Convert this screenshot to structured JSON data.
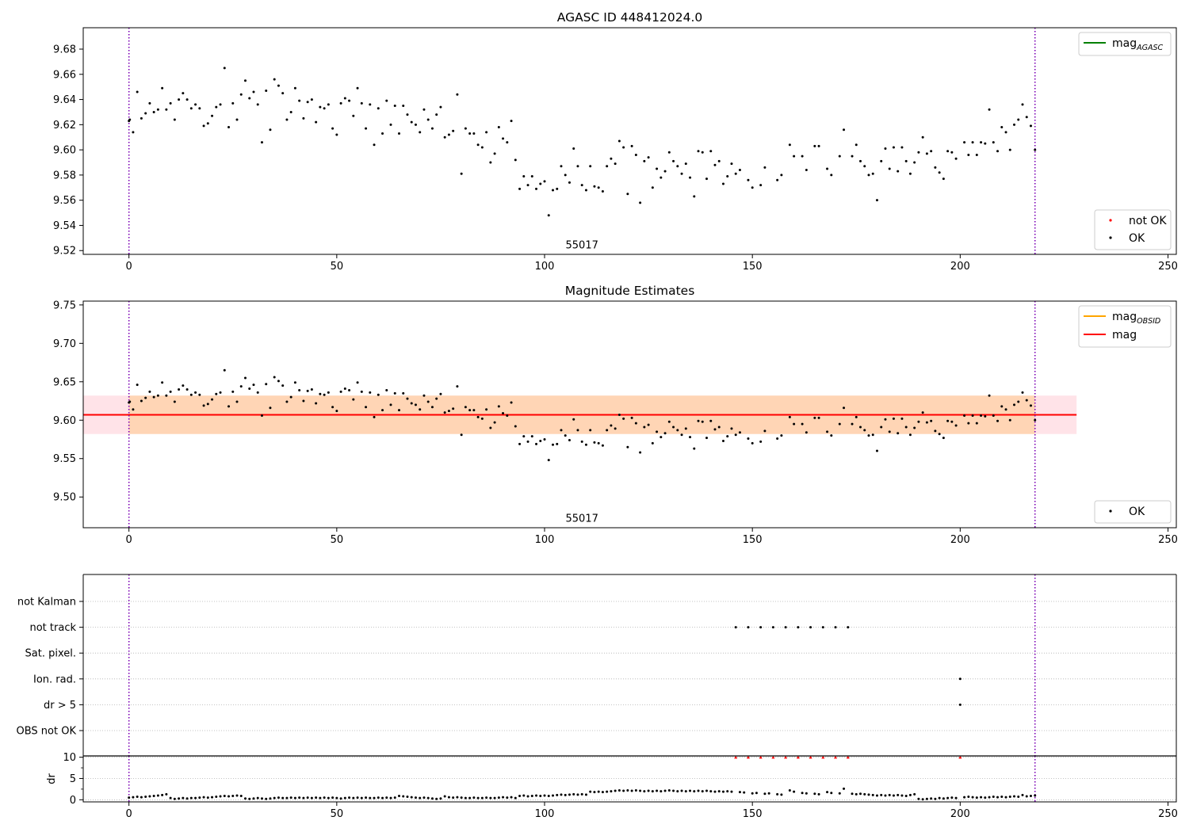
{
  "chart_data": [
    {
      "type": "scatter",
      "title": "AGASC ID 448412024.0",
      "xlim": [
        -11,
        252
      ],
      "ylim": [
        9.517,
        9.697
      ],
      "xticks": [
        0,
        50,
        100,
        150,
        200,
        250
      ],
      "yticks": [
        9.52,
        9.54,
        9.56,
        9.58,
        9.6,
        9.62,
        9.64,
        9.66,
        9.68
      ],
      "ytick_decimals": 2,
      "obsid_bounds": [
        0,
        218
      ],
      "obsid_label": {
        "text": "55017",
        "x": 109,
        "y": 9.525
      },
      "legend_lines": [
        {
          "label": "mag",
          "sub": "AGASC",
          "color": "#008000"
        }
      ],
      "legend_markers": [
        {
          "label": "not OK",
          "color": "#ff0000"
        },
        {
          "label": "OK",
          "color": "#000000"
        }
      ],
      "legend_placement": {
        "lines": "top-right",
        "markers": "bottom-right"
      },
      "series": [
        {
          "name": "OK",
          "color": "#000000",
          "source": "mag_points"
        }
      ]
    },
    {
      "type": "scatter",
      "title": "Magnitude Estimates",
      "xlim": [
        -11,
        252
      ],
      "ylim": [
        9.46,
        9.755
      ],
      "xticks": [
        0,
        50,
        100,
        150,
        200,
        250
      ],
      "yticks": [
        9.5,
        9.55,
        9.6,
        9.65,
        9.7,
        9.75
      ],
      "ytick_decimals": 2,
      "obsid_bounds": [
        0,
        218
      ],
      "obsid_label": {
        "text": "55017",
        "x": 109,
        "y": 9.473
      },
      "mag_line": {
        "value": 9.607,
        "x": [
          -11,
          228
        ],
        "color": "#ff0000"
      },
      "mag_band": {
        "low": 9.582,
        "high": 9.632,
        "x": [
          -11,
          228
        ],
        "color": "#ffc0cb"
      },
      "obsid_line": {
        "value": 9.607,
        "x": [
          0,
          218
        ],
        "color": "#ffa500"
      },
      "obsid_band": {
        "low": 9.582,
        "high": 9.632,
        "x": [
          0,
          218
        ],
        "color": "#ffa500"
      },
      "legend_lines": [
        {
          "label": "mag",
          "sub": "OBSID",
          "color": "#ffa500"
        },
        {
          "label": "mag",
          "sub": "",
          "color": "#ff0000"
        }
      ],
      "legend_markers": [
        {
          "label": "OK",
          "color": "#000000"
        }
      ],
      "legend_placement": {
        "lines": "top-right",
        "markers": "bottom-right"
      },
      "series": [
        {
          "name": "OK",
          "color": "#000000",
          "source": "mag_points"
        }
      ]
    },
    {
      "type": "scatter",
      "title": "",
      "xlim": [
        -11,
        252
      ],
      "categories": [
        "not Kalman",
        "not track",
        "Sat. pixel.",
        "Ion. rad.",
        "dr > 5",
        "OBS not OK"
      ],
      "flags": {
        "not Kalman": [],
        "not track": [
          146,
          149,
          152,
          155,
          158,
          161,
          164,
          167,
          170,
          173
        ],
        "Sat. pixel.": [],
        "Ion. rad.": [
          200
        ],
        "dr > 5": [
          200
        ],
        "OBS not OK": []
      },
      "obsid_bounds": [
        0,
        218
      ],
      "grid": true
    },
    {
      "type": "scatter",
      "title": "",
      "xlabel": "",
      "ylabel": "dr",
      "xlim": [
        -11,
        252
      ],
      "ylim": [
        -0.5,
        10.3
      ],
      "xticks": [
        0,
        50,
        100,
        150,
        200,
        250
      ],
      "yticks": [
        0,
        5,
        10
      ],
      "obsid_bounds": [
        0,
        218
      ],
      "grid": true,
      "clipped_over_10": [
        146,
        149,
        152,
        155,
        158,
        161,
        164,
        167,
        170,
        173,
        200
      ],
      "series": [
        {
          "name": "dr",
          "color": "#000000",
          "source": "dr_points"
        }
      ]
    }
  ],
  "mag_points": [
    [
      0,
      9.623
    ],
    [
      0.2,
      9.624
    ],
    [
      1,
      9.614
    ],
    [
      2,
      9.646
    ],
    [
      3,
      9.625
    ],
    [
      4,
      9.629
    ],
    [
      5,
      9.637
    ],
    [
      6,
      9.63
    ],
    [
      7,
      9.632
    ],
    [
      8,
      9.649
    ],
    [
      9,
      9.632
    ],
    [
      10,
      9.637
    ],
    [
      11,
      9.624
    ],
    [
      12,
      9.64
    ],
    [
      13,
      9.645
    ],
    [
      14,
      9.64
    ],
    [
      15,
      9.633
    ],
    [
      16,
      9.636
    ],
    [
      17,
      9.633
    ],
    [
      18,
      9.619
    ],
    [
      19,
      9.621
    ],
    [
      20,
      9.627
    ],
    [
      21,
      9.634
    ],
    [
      22,
      9.636
    ],
    [
      23,
      9.665
    ],
    [
      24,
      9.618
    ],
    [
      25,
      9.637
    ],
    [
      26,
      9.624
    ],
    [
      27,
      9.644
    ],
    [
      28,
      9.655
    ],
    [
      29,
      9.641
    ],
    [
      30,
      9.646
    ],
    [
      31,
      9.636
    ],
    [
      32,
      9.606
    ],
    [
      33,
      9.647
    ],
    [
      34,
      9.616
    ],
    [
      35,
      9.656
    ],
    [
      36,
      9.651
    ],
    [
      37,
      9.645
    ],
    [
      38,
      9.624
    ],
    [
      39,
      9.63
    ],
    [
      40,
      9.649
    ],
    [
      41,
      9.639
    ],
    [
      42,
      9.625
    ],
    [
      43,
      9.638
    ],
    [
      44,
      9.64
    ],
    [
      45,
      9.622
    ],
    [
      46,
      9.634
    ],
    [
      47,
      9.633
    ],
    [
      48,
      9.636
    ],
    [
      49,
      9.617
    ],
    [
      50,
      9.612
    ],
    [
      51,
      9.637
    ],
    [
      52,
      9.641
    ],
    [
      53,
      9.639
    ],
    [
      54,
      9.627
    ],
    [
      55,
      9.649
    ],
    [
      56,
      9.637
    ],
    [
      57,
      9.617
    ],
    [
      58,
      9.636
    ],
    [
      59,
      9.604
    ],
    [
      60,
      9.633
    ],
    [
      61,
      9.613
    ],
    [
      62,
      9.639
    ],
    [
      63,
      9.62
    ],
    [
      64,
      9.635
    ],
    [
      65,
      9.613
    ],
    [
      66,
      9.635
    ],
    [
      67,
      9.628
    ],
    [
      68,
      9.622
    ],
    [
      69,
      9.62
    ],
    [
      70,
      9.614
    ],
    [
      71,
      9.632
    ],
    [
      72,
      9.624
    ],
    [
      73,
      9.617
    ],
    [
      74,
      9.628
    ],
    [
      75,
      9.634
    ],
    [
      76,
      9.61
    ],
    [
      77,
      9.612
    ],
    [
      78,
      9.615
    ],
    [
      79,
      9.644
    ],
    [
      80,
      9.581
    ],
    [
      81,
      9.617
    ],
    [
      82,
      9.613
    ],
    [
      83,
      9.613
    ],
    [
      84,
      9.604
    ],
    [
      85,
      9.602
    ],
    [
      86,
      9.614
    ],
    [
      87,
      9.59
    ],
    [
      88,
      9.597
    ],
    [
      89,
      9.618
    ],
    [
      90,
      9.609
    ],
    [
      91,
      9.606
    ],
    [
      92,
      9.623
    ],
    [
      93,
      9.592
    ],
    [
      94,
      9.569
    ],
    [
      95,
      9.579
    ],
    [
      96,
      9.572
    ],
    [
      97,
      9.579
    ],
    [
      98,
      9.569
    ],
    [
      99,
      9.573
    ],
    [
      100,
      9.575
    ],
    [
      101,
      9.548
    ],
    [
      102,
      9.568
    ],
    [
      103,
      9.569
    ],
    [
      104,
      9.587
    ],
    [
      105,
      9.58
    ],
    [
      106,
      9.574
    ],
    [
      107,
      9.601
    ],
    [
      108,
      9.587
    ],
    [
      109,
      9.572
    ],
    [
      110,
      9.568
    ],
    [
      111,
      9.587
    ],
    [
      112,
      9.571
    ],
    [
      113,
      9.57
    ],
    [
      114,
      9.567
    ],
    [
      115,
      9.587
    ],
    [
      116,
      9.593
    ],
    [
      117,
      9.589
    ],
    [
      118,
      9.607
    ],
    [
      119,
      9.602
    ],
    [
      120,
      9.565
    ],
    [
      121,
      9.603
    ],
    [
      122,
      9.596
    ],
    [
      123,
      9.558
    ],
    [
      124,
      9.591
    ],
    [
      125,
      9.594
    ],
    [
      126,
      9.57
    ],
    [
      127,
      9.585
    ],
    [
      128,
      9.578
    ],
    [
      129,
      9.583
    ],
    [
      130,
      9.598
    ],
    [
      131,
      9.591
    ],
    [
      132,
      9.587
    ],
    [
      133,
      9.581
    ],
    [
      134,
      9.589
    ],
    [
      135,
      9.578
    ],
    [
      136,
      9.563
    ],
    [
      137,
      9.599
    ],
    [
      138,
      9.598
    ],
    [
      139,
      9.577
    ],
    [
      140,
      9.599
    ],
    [
      141,
      9.588
    ],
    [
      142,
      9.591
    ],
    [
      143,
      9.573
    ],
    [
      144,
      9.579
    ],
    [
      145,
      9.589
    ],
    [
      146,
      9.581
    ],
    [
      147,
      9.584
    ],
    [
      149,
      9.576
    ],
    [
      150,
      9.57
    ],
    [
      152,
      9.572
    ],
    [
      153,
      9.586
    ],
    [
      156,
      9.576
    ],
    [
      157,
      9.58
    ],
    [
      159,
      9.604
    ],
    [
      160,
      9.595
    ],
    [
      162,
      9.595
    ],
    [
      163,
      9.584
    ],
    [
      165,
      9.603
    ],
    [
      166,
      9.603
    ],
    [
      168,
      9.585
    ],
    [
      169,
      9.58
    ],
    [
      171,
      9.595
    ],
    [
      172,
      9.616
    ],
    [
      174,
      9.595
    ],
    [
      175,
      9.604
    ],
    [
      176,
      9.591
    ],
    [
      177,
      9.587
    ],
    [
      178,
      9.58
    ],
    [
      179,
      9.581
    ],
    [
      180,
      9.56
    ],
    [
      181,
      9.591
    ],
    [
      182,
      9.601
    ],
    [
      183,
      9.585
    ],
    [
      184,
      9.602
    ],
    [
      185,
      9.583
    ],
    [
      186,
      9.602
    ],
    [
      187,
      9.591
    ],
    [
      188,
      9.581
    ],
    [
      189,
      9.59
    ],
    [
      190,
      9.598
    ],
    [
      191,
      9.61
    ],
    [
      192,
      9.597
    ],
    [
      193,
      9.599
    ],
    [
      194,
      9.586
    ],
    [
      195,
      9.582
    ],
    [
      196,
      9.577
    ],
    [
      197,
      9.599
    ],
    [
      198,
      9.598
    ],
    [
      199,
      9.593
    ],
    [
      201,
      9.606
    ],
    [
      202,
      9.596
    ],
    [
      203,
      9.606
    ],
    [
      204,
      9.596
    ],
    [
      205,
      9.606
    ],
    [
      206,
      9.605
    ],
    [
      207,
      9.632
    ],
    [
      208,
      9.606
    ],
    [
      209,
      9.599
    ],
    [
      210,
      9.618
    ],
    [
      211,
      9.614
    ],
    [
      212,
      9.6
    ],
    [
      213,
      9.62
    ],
    [
      214,
      9.624
    ],
    [
      215,
      9.636
    ],
    [
      216,
      9.626
    ],
    [
      217,
      9.619
    ],
    [
      218,
      9.6
    ]
  ],
  "dr_points": [
    [
      0,
      0.5
    ],
    [
      1,
      0.6
    ],
    [
      2,
      0.7
    ],
    [
      3,
      0.6
    ],
    [
      4,
      0.7
    ],
    [
      5,
      0.8
    ],
    [
      6,
      0.9
    ],
    [
      7,
      1.0
    ],
    [
      8,
      1.1
    ],
    [
      9,
      1.3
    ],
    [
      10,
      0.4
    ],
    [
      11,
      0.2
    ],
    [
      12,
      0.3
    ],
    [
      13,
      0.4
    ],
    [
      14,
      0.3
    ],
    [
      15,
      0.4
    ],
    [
      16,
      0.4
    ],
    [
      17,
      0.5
    ],
    [
      18,
      0.6
    ],
    [
      19,
      0.5
    ],
    [
      20,
      0.6
    ],
    [
      21,
      0.7
    ],
    [
      22,
      0.8
    ],
    [
      23,
      0.9
    ],
    [
      24,
      0.8
    ],
    [
      25,
      0.9
    ],
    [
      26,
      1.0
    ],
    [
      27,
      0.9
    ],
    [
      28,
      0.3
    ],
    [
      29,
      0.2
    ],
    [
      30,
      0.3
    ],
    [
      31,
      0.4
    ],
    [
      32,
      0.3
    ],
    [
      33,
      0.2
    ],
    [
      34,
      0.3
    ],
    [
      35,
      0.4
    ],
    [
      36,
      0.5
    ],
    [
      37,
      0.4
    ],
    [
      38,
      0.4
    ],
    [
      39,
      0.5
    ],
    [
      40,
      0.4
    ],
    [
      41,
      0.5
    ],
    [
      42,
      0.4
    ],
    [
      43,
      0.5
    ],
    [
      44,
      0.4
    ],
    [
      45,
      0.5
    ],
    [
      46,
      0.4
    ],
    [
      47,
      0.5
    ],
    [
      48,
      0.4
    ],
    [
      49,
      0.5
    ],
    [
      50,
      0.4
    ],
    [
      51,
      0.3
    ],
    [
      52,
      0.4
    ],
    [
      53,
      0.5
    ],
    [
      54,
      0.4
    ],
    [
      55,
      0.5
    ],
    [
      56,
      0.4
    ],
    [
      57,
      0.5
    ],
    [
      58,
      0.4
    ],
    [
      59,
      0.4
    ],
    [
      60,
      0.5
    ],
    [
      61,
      0.4
    ],
    [
      62,
      0.5
    ],
    [
      63,
      0.4
    ],
    [
      64,
      0.5
    ],
    [
      65,
      0.9
    ],
    [
      66,
      0.8
    ],
    [
      67,
      0.7
    ],
    [
      68,
      0.6
    ],
    [
      69,
      0.5
    ],
    [
      70,
      0.4
    ],
    [
      71,
      0.5
    ],
    [
      72,
      0.4
    ],
    [
      73,
      0.3
    ],
    [
      74,
      0.2
    ],
    [
      75,
      0.3
    ],
    [
      76,
      0.8
    ],
    [
      77,
      0.6
    ],
    [
      78,
      0.5
    ],
    [
      79,
      0.6
    ],
    [
      80,
      0.5
    ],
    [
      81,
      0.4
    ],
    [
      82,
      0.4
    ],
    [
      83,
      0.5
    ],
    [
      84,
      0.4
    ],
    [
      85,
      0.4
    ],
    [
      86,
      0.5
    ],
    [
      87,
      0.4
    ],
    [
      88,
      0.4
    ],
    [
      89,
      0.5
    ],
    [
      90,
      0.6
    ],
    [
      91,
      0.5
    ],
    [
      92,
      0.6
    ],
    [
      93,
      0.4
    ],
    [
      94,
      0.9
    ],
    [
      95,
      1.0
    ],
    [
      96,
      0.8
    ],
    [
      97,
      0.9
    ],
    [
      98,
      1.0
    ],
    [
      99,
      0.9
    ],
    [
      100,
      1.0
    ],
    [
      101,
      0.9
    ],
    [
      102,
      1.0
    ],
    [
      103,
      1.1
    ],
    [
      104,
      1.2
    ],
    [
      105,
      1.1
    ],
    [
      106,
      1.2
    ],
    [
      107,
      1.3
    ],
    [
      108,
      1.2
    ],
    [
      109,
      1.3
    ],
    [
      110,
      1.2
    ],
    [
      111,
      1.9
    ],
    [
      112,
      1.8
    ],
    [
      113,
      1.9
    ],
    [
      114,
      1.8
    ],
    [
      115,
      1.9
    ],
    [
      116,
      2.0
    ],
    [
      117,
      2.1
    ],
    [
      118,
      2.2
    ],
    [
      119,
      2.1
    ],
    [
      120,
      2.2
    ],
    [
      121,
      2.1
    ],
    [
      122,
      2.2
    ],
    [
      123,
      2.1
    ],
    [
      124,
      2.0
    ],
    [
      125,
      2.1
    ],
    [
      126,
      2.0
    ],
    [
      127,
      2.1
    ],
    [
      128,
      2.0
    ],
    [
      129,
      2.1
    ],
    [
      130,
      2.2
    ],
    [
      131,
      2.1
    ],
    [
      132,
      2.0
    ],
    [
      133,
      2.1
    ],
    [
      134,
      2.0
    ],
    [
      135,
      2.1
    ],
    [
      136,
      2.0
    ],
    [
      137,
      2.1
    ],
    [
      138,
      2.0
    ],
    [
      139,
      2.1
    ],
    [
      140,
      2.0
    ],
    [
      141,
      1.9
    ],
    [
      142,
      2.0
    ],
    [
      143,
      1.9
    ],
    [
      144,
      2.0
    ],
    [
      145,
      1.9
    ],
    [
      147,
      1.8
    ],
    [
      148,
      1.7
    ],
    [
      150,
      1.5
    ],
    [
      151,
      1.6
    ],
    [
      153,
      1.4
    ],
    [
      154,
      1.5
    ],
    [
      156,
      1.3
    ],
    [
      157,
      1.2
    ],
    [
      159,
      2.2
    ],
    [
      160,
      1.9
    ],
    [
      162,
      1.6
    ],
    [
      163,
      1.5
    ],
    [
      165,
      1.4
    ],
    [
      166,
      1.3
    ],
    [
      168,
      1.8
    ],
    [
      169,
      1.6
    ],
    [
      171,
      1.5
    ],
    [
      172,
      2.6
    ],
    [
      174,
      1.4
    ],
    [
      175,
      1.3
    ],
    [
      176,
      1.4
    ],
    [
      177,
      1.3
    ],
    [
      178,
      1.2
    ],
    [
      179,
      1.1
    ],
    [
      180,
      1.0
    ],
    [
      181,
      1.1
    ],
    [
      182,
      1.0
    ],
    [
      183,
      1.1
    ],
    [
      184,
      1.0
    ],
    [
      185,
      1.1
    ],
    [
      186,
      1.0
    ],
    [
      187,
      0.9
    ],
    [
      188,
      1.1
    ],
    [
      189,
      1.3
    ],
    [
      190,
      0.2
    ],
    [
      191,
      0.1
    ],
    [
      192,
      0.2
    ],
    [
      193,
      0.3
    ],
    [
      194,
      0.2
    ],
    [
      195,
      0.4
    ],
    [
      196,
      0.3
    ],
    [
      197,
      0.4
    ],
    [
      198,
      0.5
    ],
    [
      199,
      0.4
    ],
    [
      201,
      0.6
    ],
    [
      202,
      0.7
    ],
    [
      203,
      0.6
    ],
    [
      204,
      0.5
    ],
    [
      205,
      0.6
    ],
    [
      206,
      0.5
    ],
    [
      207,
      0.6
    ],
    [
      208,
      0.7
    ],
    [
      209,
      0.6
    ],
    [
      210,
      0.7
    ],
    [
      211,
      0.6
    ],
    [
      212,
      0.7
    ],
    [
      213,
      0.8
    ],
    [
      214,
      0.7
    ],
    [
      215,
      1.1
    ],
    [
      216,
      0.8
    ],
    [
      217,
      0.9
    ],
    [
      218,
      1.0
    ]
  ]
}
